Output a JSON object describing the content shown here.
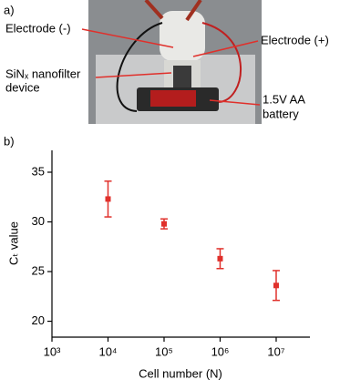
{
  "panel_a": {
    "label": "a)",
    "annotations": {
      "electrode_minus": "Electrode (-)",
      "electrode_plus": "Electrode (+)",
      "device": [
        "SiNₓ nanofilter",
        "device"
      ],
      "battery": [
        "1.5V AA",
        "battery"
      ]
    }
  },
  "chart_data": {
    "type": "errorbar",
    "panel_label": "b)",
    "x_label": "Cell number (N)",
    "y_label": "Cₜ value",
    "x": [
      10000,
      100000,
      1000000,
      10000000
    ],
    "series": [
      {
        "color": "#e0302b",
        "values": [
          32.3,
          29.8,
          26.3,
          23.6
        ],
        "errors": [
          1.8,
          0.5,
          1.0,
          1.5
        ]
      }
    ],
    "log_x": true,
    "xlim": [
      1000,
      40000000
    ],
    "xticks": [
      {
        "value": 1000,
        "label": "10³"
      },
      {
        "value": 10000,
        "label": "10⁴"
      },
      {
        "value": 100000,
        "label": "10⁵"
      },
      {
        "value": 1000000,
        "label": "10⁶"
      },
      {
        "value": 10000000,
        "label": "10⁷"
      }
    ],
    "ylim": [
      18.4,
      37.2
    ],
    "yticks": [
      20,
      25,
      30,
      35
    ]
  }
}
